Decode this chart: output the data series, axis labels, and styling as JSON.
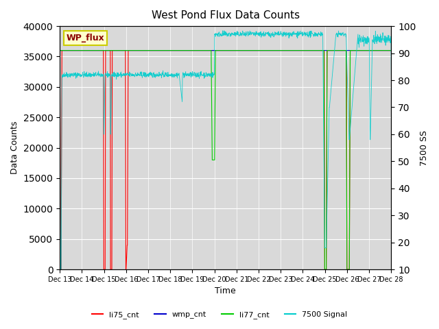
{
  "title": "West Pond Flux Data Counts",
  "ylabel_left": "Data Counts",
  "ylabel_right": "7500 SS",
  "xlabel": "Time",
  "xlim_days": [
    13,
    28
  ],
  "ylim_left": [
    0,
    40000
  ],
  "ylim_right": [
    10,
    100
  ],
  "background_color": "#d9d9d9",
  "figure_bg": "#ffffff",
  "watermark_text": "WP_flux",
  "watermark_color": "#8B0000",
  "watermark_bg": "#ffffcc",
  "watermark_border": "#cccc00",
  "x_tick_labels": [
    "Dec 13",
    "Dec 14",
    "Dec 15",
    "Dec 16",
    "Dec 17",
    "Dec 18",
    "Dec 19",
    "Dec 20",
    "Dec 21",
    "Dec 22",
    "Dec 23",
    "Dec 24",
    "Dec 25",
    "Dec 26",
    "Dec 27",
    "Dec 28"
  ],
  "x_tick_positions": [
    13,
    14,
    15,
    16,
    17,
    18,
    19,
    20,
    21,
    22,
    23,
    24,
    25,
    26,
    27,
    28
  ],
  "yticks_left": [
    0,
    5000,
    10000,
    15000,
    20000,
    25000,
    30000,
    35000,
    40000
  ],
  "yticks_right": [
    10,
    20,
    30,
    40,
    50,
    60,
    70,
    80,
    90,
    100
  ],
  "li75_color": "#ff0000",
  "wmp_color": "#0000cc",
  "li77_color": "#00cc00",
  "signal_color": "#00cccc",
  "legend_entries": [
    "li75_cnt",
    "wmp_cnt",
    "li77_cnt",
    "7500 Signal"
  ]
}
